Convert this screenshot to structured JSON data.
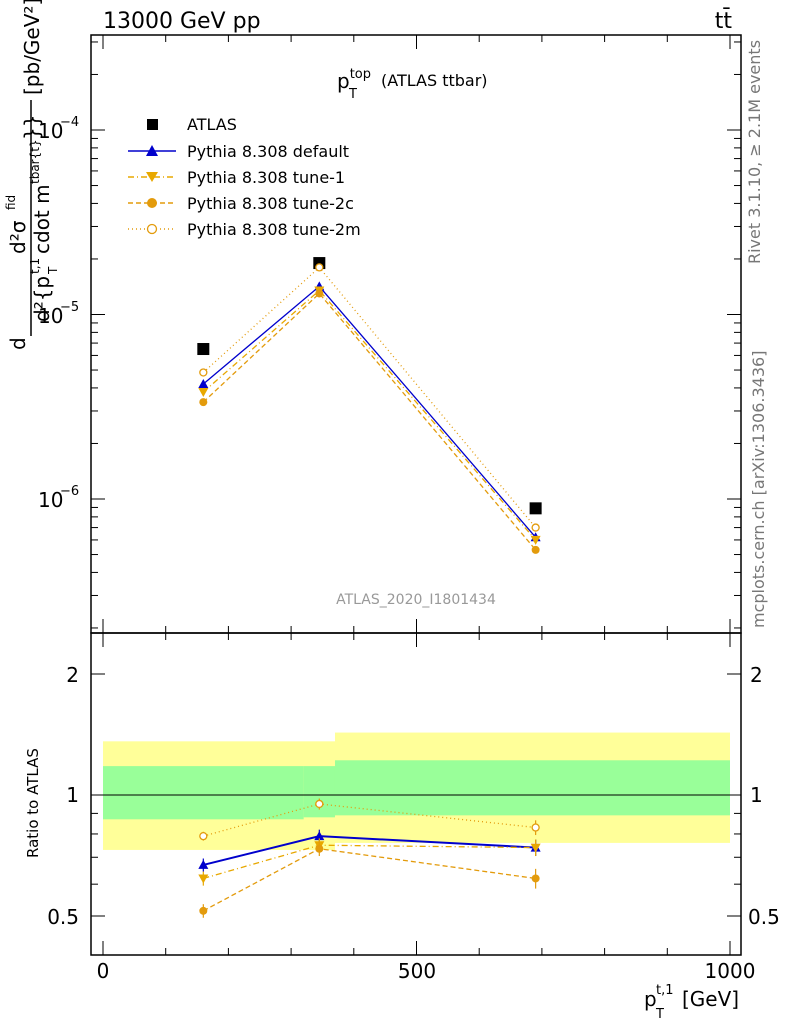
{
  "header": {
    "energy_label": "13000 GeV pp",
    "process_label": "tt̄"
  },
  "side_labels": {
    "rivet": "Rivet 3.1.10, ≥ 2.1M events",
    "mcplots": "mcplots.cern.ch [arXiv:1306.3436]"
  },
  "main_panel": {
    "title_main": "p",
    "title_sub": "T",
    "title_sup": "top",
    "title_suffix": "(ATLAS ttbar)",
    "watermark": "ATLAS_2020_I1801434",
    "ylabel_parts": {
      "num_d": "d",
      "num_sigma": "d²σ",
      "num_sigma_sup": "fid",
      "den": "d²{p",
      "den_sub": "T",
      "den_sup": "t,1",
      "den_tail": "cdot m",
      "den_tail_sup": "tbar{t}",
      "den_close": "}}",
      "unit": "[pb/GeV²]"
    },
    "y_tick_labels": [
      {
        "base": "10",
        "exp": "−4",
        "value": 0.0001
      },
      {
        "base": "10",
        "exp": "−5",
        "value": 1e-05
      },
      {
        "base": "10",
        "exp": "−6",
        "value": 1e-06
      }
    ]
  },
  "ratio_panel": {
    "ylabel": "Ratio to ATLAS",
    "y_tick_labels": [
      "2",
      "1",
      "0.5"
    ],
    "right_tick_labels": [
      "2",
      "1",
      "0.5"
    ]
  },
  "x_axis": {
    "label_main": "p",
    "label_sub": "T",
    "label_sup": "t,1",
    "label_unit": "[GeV]",
    "tick_labels": [
      "0",
      "500",
      "1000"
    ]
  },
  "chart_data": {
    "type": "scatter",
    "x_bin_edges": [
      0,
      320,
      370,
      1000
    ],
    "x": [
      160,
      345,
      690
    ],
    "xlim": [
      -25,
      1000
    ],
    "ylim_main": [
      2.3e-07,
      0.00032
    ],
    "yscale_main": "log",
    "ylim_ratio": [
      0.4,
      2.35
    ],
    "yscale_ratio": "log",
    "legend_placement": "top-left",
    "series": [
      {
        "name": "ATLAS",
        "color": "#000000",
        "marker": "square",
        "line": "none",
        "values": [
          6.5e-06,
          1.9e-05,
          8.9e-07
        ]
      },
      {
        "name": "Pythia 8.308 default",
        "color": "#0000cc",
        "marker": "triangle-up",
        "line": "solid",
        "values": [
          4.2e-06,
          1.42e-05,
          6.2e-07
        ],
        "ratio": [
          0.67,
          0.79,
          0.74
        ],
        "ratio_err": [
          0.025,
          0.03,
          0.035
        ]
      },
      {
        "name": "Pythia 8.308 tune-1",
        "color": "#e8a800",
        "marker": "triangle-down",
        "line": "dashdot",
        "values": [
          3.8e-06,
          1.35e-05,
          6e-07
        ],
        "ratio": [
          0.62,
          0.75,
          0.74
        ],
        "ratio_err": [
          0.025,
          0.03,
          0.035
        ]
      },
      {
        "name": "Pythia 8.308 tune-2c",
        "color": "#e39b0c",
        "marker": "circle-filled",
        "line": "dashed",
        "values": [
          3.35e-06,
          1.3e-05,
          5.3e-07
        ],
        "ratio": [
          0.515,
          0.735,
          0.62
        ],
        "ratio_err": [
          0.02,
          0.03,
          0.035
        ]
      },
      {
        "name": "Pythia 8.308 tune-2m",
        "color": "#e39b0c",
        "marker": "circle-open",
        "line": "dotted",
        "values": [
          4.85e-06,
          1.8e-05,
          7e-07
        ],
        "ratio": [
          0.79,
          0.95,
          0.83
        ],
        "ratio_err": [
          0.02,
          0.03,
          0.035
        ]
      }
    ],
    "uncertainty_bands": {
      "yellow": [
        {
          "x0": 0,
          "x1": 370,
          "lo": 0.73,
          "hi": 1.36
        },
        {
          "x0": 370,
          "x1": 1000,
          "lo": 0.76,
          "hi": 1.43
        }
      ],
      "green": [
        {
          "x0": 0,
          "x1": 320,
          "lo": 0.87,
          "hi": 1.18
        },
        {
          "x0": 320,
          "x1": 370,
          "lo": 0.88,
          "hi": 1.18
        },
        {
          "x0": 370,
          "x1": 1000,
          "lo": 0.89,
          "hi": 1.22
        }
      ]
    },
    "colors": {
      "yellow_band": "#ffff99",
      "green_band": "#99ff99"
    }
  }
}
